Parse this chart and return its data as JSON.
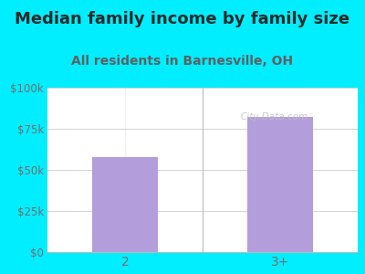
{
  "title": "Median family income by family size",
  "subtitle": "All residents in Barnesville, OH",
  "categories": [
    "2",
    "3+"
  ],
  "values": [
    58000,
    82000
  ],
  "bar_color": "#b39ddb",
  "background_color": "#00eeff",
  "plot_bg_color_left": "#dff0e8",
  "plot_bg_color_right": "#f8f8f8",
  "title_color": "#2a2a2a",
  "subtitle_color": "#606060",
  "tick_label_color": "#707070",
  "ylim": [
    0,
    100000
  ],
  "yticks": [
    0,
    25000,
    50000,
    75000,
    100000
  ],
  "ytick_labels": [
    "$0",
    "$25k",
    "$50k",
    "$75k",
    "$100k"
  ],
  "title_fontsize": 13,
  "subtitle_fontsize": 10,
  "watermark": "City-Data.com"
}
